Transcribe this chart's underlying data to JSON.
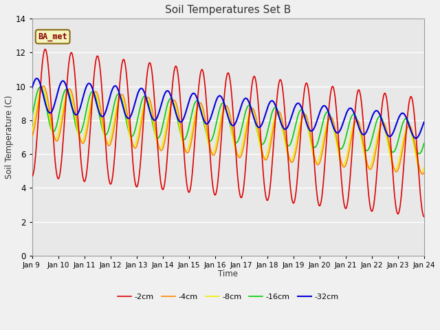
{
  "title": "Soil Temperatures Set B",
  "xlabel": "Time",
  "ylabel": "Soil Temperature (C)",
  "ylim": [
    0,
    14
  ],
  "fig_bg": "#f0f0f0",
  "plot_bg": "#e8e8e8",
  "annotation": "BA_met",
  "x_tick_labels": [
    "Jan 9 ",
    "Jan 10",
    "Jan 11",
    "Jan 12",
    "Jan 13",
    "Jan 14",
    "Jan 15",
    "Jan 16",
    "Jan 17",
    "Jan 18",
    "Jan 19",
    "Jan 20",
    "Jan 21",
    "Jan 22",
    "Jan 23",
    "Jan 24"
  ],
  "series": {
    "-2cm": {
      "color": "#dd0000",
      "lw": 1.2
    },
    "-4cm": {
      "color": "#ff8800",
      "lw": 1.2
    },
    "-8cm": {
      "color": "#eeee00",
      "lw": 1.2
    },
    "-16cm": {
      "color": "#00cc00",
      "lw": 1.2
    },
    "-32cm": {
      "color": "#0000dd",
      "lw": 1.5
    }
  }
}
